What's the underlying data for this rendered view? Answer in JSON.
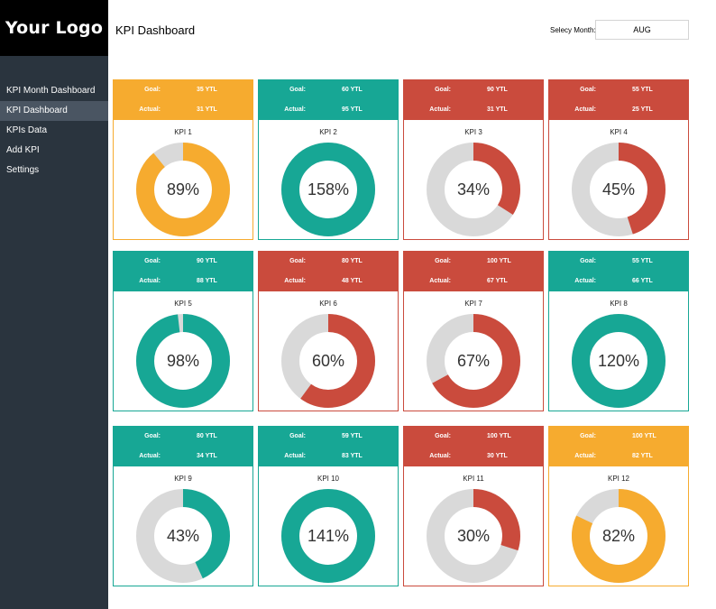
{
  "logo": {
    "text": "Your Logo"
  },
  "header": {
    "title": "KPI Dashboard",
    "month_label": "Selecy Month:",
    "month_value": "AUG"
  },
  "sidebar": {
    "items": [
      {
        "label": "KPI Month Dashboard",
        "active": false
      },
      {
        "label": "KPI Dashboard",
        "active": true
      },
      {
        "label": "KPIs Data",
        "active": false
      },
      {
        "label": "Add KPI",
        "active": false
      },
      {
        "label": "Settings",
        "active": false
      }
    ]
  },
  "labels": {
    "goal": "Goal:",
    "actual": "Actual:"
  },
  "colors": {
    "orange": "#f6ab2f",
    "teal": "#17a795",
    "red": "#ca4b3d",
    "track": "#d9d9d9",
    "sidebar": "#2a343e",
    "logo_bg": "#000000"
  },
  "kpis": [
    {
      "name": "KPI 1",
      "goal": "35 YTL",
      "actual": "31 YTL",
      "percent_label": "89%",
      "percent": 89,
      "color": "orange"
    },
    {
      "name": "KPI 2",
      "goal": "60 YTL",
      "actual": "95 YTL",
      "percent_label": "158%",
      "percent": 158,
      "color": "teal"
    },
    {
      "name": "KPI 3",
      "goal": "90 YTL",
      "actual": "31 YTL",
      "percent_label": "34%",
      "percent": 34,
      "color": "red"
    },
    {
      "name": "KPI 4",
      "goal": "55 YTL",
      "actual": "25 YTL",
      "percent_label": "45%",
      "percent": 45,
      "color": "red"
    },
    {
      "name": "KPI 5",
      "goal": "90 YTL",
      "actual": "88 YTL",
      "percent_label": "98%",
      "percent": 98,
      "color": "teal"
    },
    {
      "name": "KPI 6",
      "goal": "80 YTL",
      "actual": "48 YTL",
      "percent_label": "60%",
      "percent": 60,
      "color": "red"
    },
    {
      "name": "KPI 7",
      "goal": "100 YTL",
      "actual": "67 YTL",
      "percent_label": "67%",
      "percent": 67,
      "color": "red"
    },
    {
      "name": "KPI 8",
      "goal": "55 YTL",
      "actual": "66 YTL",
      "percent_label": "120%",
      "percent": 120,
      "color": "teal"
    },
    {
      "name": "KPI 9",
      "goal": "80 YTL",
      "actual": "34 YTL",
      "percent_label": "43%",
      "percent": 43,
      "color": "teal"
    },
    {
      "name": "KPI 10",
      "goal": "59 YTL",
      "actual": "83 YTL",
      "percent_label": "141%",
      "percent": 141,
      "color": "teal"
    },
    {
      "name": "KPI 11",
      "goal": "100 YTL",
      "actual": "30 YTL",
      "percent_label": "30%",
      "percent": 30,
      "color": "red"
    },
    {
      "name": "KPI 12",
      "goal": "100 YTL",
      "actual": "82 YTL",
      "percent_label": "82%",
      "percent": 82,
      "color": "orange"
    }
  ]
}
